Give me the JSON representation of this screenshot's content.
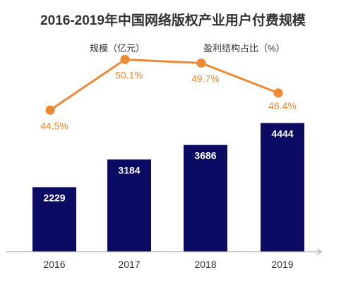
{
  "chart_data": {
    "type": "bar+line",
    "title": "2016-2019年中国网络版权产业用户付费规模",
    "categories": [
      "2016",
      "2017",
      "2018",
      "2019"
    ],
    "series": [
      {
        "name": "规模（亿元）",
        "type": "bar",
        "values": [
          2229,
          3184,
          3686,
          4444
        ],
        "color": "#0b0b63"
      },
      {
        "name": "盈利结构占比（%）",
        "type": "line",
        "values": [
          44.5,
          50.1,
          49.7,
          46.4
        ],
        "labels": [
          "44.5%",
          "50.1%",
          "49.7%",
          "46.4%"
        ],
        "color": "#ef8833"
      }
    ],
    "bar_axis": {
      "min": 0,
      "max": 4800
    },
    "line_axis": {
      "min": 40,
      "max": 52
    },
    "grid": false,
    "legend": "top"
  }
}
